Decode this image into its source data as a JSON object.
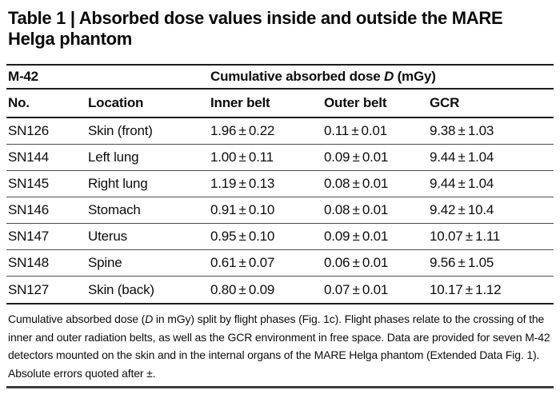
{
  "title_lines": [
    "Table 1 | Absorbed dose values inside and outside the MARE",
    "Helga phantom"
  ],
  "table": {
    "group_header": {
      "left": "M-42",
      "right_pre": "Cumulative absorbed dose ",
      "right_var": "D",
      "right_post": " (mGy)"
    },
    "columns": [
      "No.",
      "Location",
      "Inner belt",
      "Outer belt",
      "GCR"
    ],
    "rows": [
      [
        "SN126",
        "Skin (front)",
        "1.96 ± 0.22",
        "0.11 ± 0.01",
        "9.38 ± 1.03"
      ],
      [
        "SN144",
        "Left lung",
        "1.00 ± 0.11",
        "0.09 ± 0.01",
        "9.44 ± 1.04"
      ],
      [
        "SN145",
        "Right lung",
        "1.19 ± 0.13",
        "0.08 ± 0.01",
        "9.44 ± 1.04"
      ],
      [
        "SN146",
        "Stomach",
        "0.91 ± 0.10",
        "0.08 ± 0.01",
        "9.42 ± 10.4"
      ],
      [
        "SN147",
        "Uterus",
        "0.95 ± 0.10",
        "0.09 ± 0.01",
        "10.07 ± 1.11"
      ],
      [
        "SN148",
        "Spine",
        "0.61 ± 0.07",
        "0.06 ± 0.01",
        "9.56 ± 1.05"
      ],
      [
        "SN127",
        "Skin (back)",
        "0.80 ± 0.09",
        "0.07 ± 0.01",
        "10.17 ± 1.12"
      ]
    ]
  },
  "footnote": {
    "pre": "Cumulative absorbed dose (",
    "var": "D",
    "post": " in mGy) split by flight phases (Fig. 1c). Flight phases relate to the crossing of the inner and outer radiation belts, as well as the GCR environment in free space. Data are provided for seven M-42 detectors mounted on the skin and in the internal organs of the MARE Helga phantom (Extended Data Fig. 1). Absolute errors quoted after ±."
  }
}
